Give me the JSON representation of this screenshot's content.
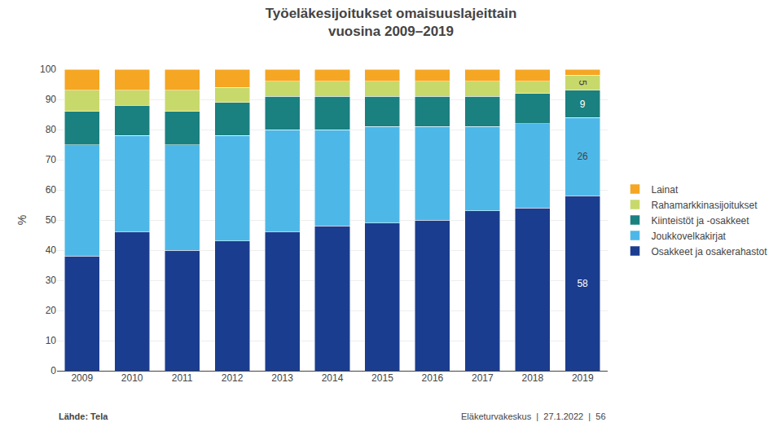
{
  "chart_data": {
    "type": "bar",
    "stacked": true,
    "title": "Työeläkesijoitukset omaisuuslajeittain",
    "subtitle": "vuosina 2009–2019",
    "y_label": "%",
    "categories": [
      "2009",
      "2010",
      "2011",
      "2012",
      "2013",
      "2014",
      "2015",
      "2016",
      "2017",
      "2018",
      "2019"
    ],
    "series": [
      {
        "name": "Osakkeet ja osakerahastot",
        "color": "#1a3d8f",
        "values": [
          38,
          46,
          40,
          43,
          46,
          48,
          49,
          50,
          53,
          54,
          58
        ],
        "value_labels": [
          null,
          null,
          null,
          null,
          null,
          null,
          null,
          null,
          null,
          null,
          "58"
        ]
      },
      {
        "name": "Joukkovelkakirjat",
        "color": "#4db8e8",
        "values": [
          37,
          32,
          35,
          35,
          34,
          32,
          32,
          31,
          28,
          28,
          26
        ],
        "value_labels": [
          null,
          null,
          null,
          null,
          null,
          null,
          null,
          null,
          null,
          null,
          "26"
        ]
      },
      {
        "name": "Kiinteistöt ja -osakkeet",
        "color": "#1a8080",
        "values": [
          11,
          10,
          11,
          11,
          11,
          11,
          10,
          10,
          10,
          10,
          9
        ],
        "value_labels": [
          null,
          null,
          null,
          null,
          null,
          null,
          null,
          null,
          null,
          null,
          "9"
        ]
      },
      {
        "name": "Rahamarkkinasijoitukset",
        "color": "#c8d96b",
        "values": [
          7,
          5,
          7,
          5,
          5,
          5,
          5,
          5,
          5,
          4,
          5
        ],
        "value_labels": [
          null,
          null,
          null,
          null,
          null,
          null,
          null,
          null,
          null,
          null,
          "5"
        ]
      },
      {
        "name": "Lainat",
        "color": "#f5a623",
        "values": [
          7,
          7,
          7,
          6,
          4,
          4,
          4,
          4,
          4,
          4,
          2
        ]
      }
    ],
    "ylim": [
      0,
      100
    ],
    "yticks": [
      0,
      10,
      20,
      30,
      40,
      50,
      60,
      70,
      80,
      90,
      100
    ],
    "grid": true,
    "legend": "right",
    "annotations": [
      "Lähde: Tela",
      "Eläketurvakeskus",
      "|",
      "27.1.2022",
      "|",
      "56"
    ]
  }
}
